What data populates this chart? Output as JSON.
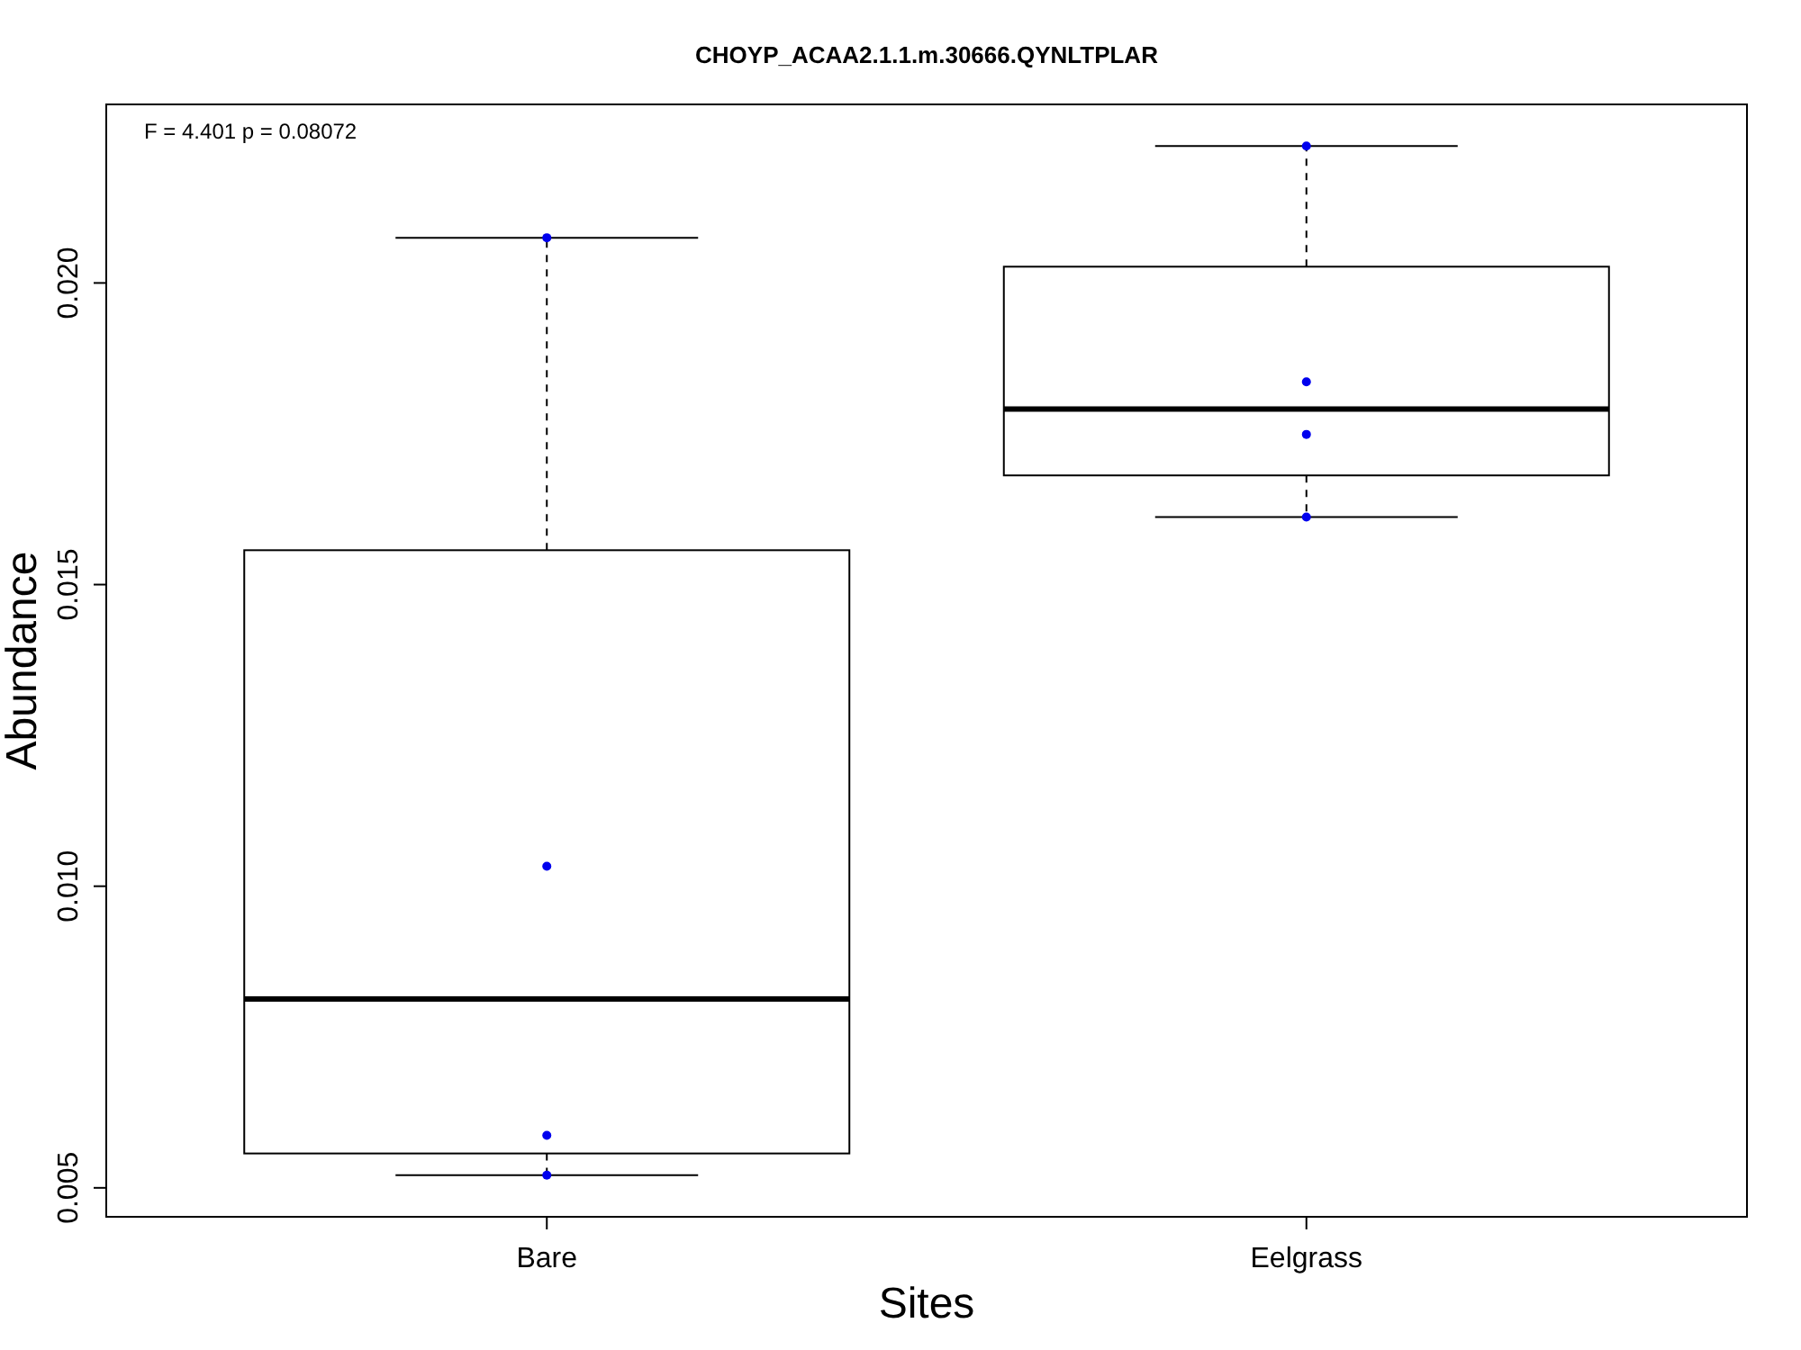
{
  "chart_data": {
    "type": "box",
    "title": "CHOYP_ACAA2.1.1.m.30666.QYNLTPLAR",
    "xlabel": "Sites",
    "ylabel": "Abundance",
    "annotations": [
      "F = 4.401 p = 0.08072"
    ],
    "categories": [
      "Bare",
      "Eelgrass"
    ],
    "ylim": [
      0.00452,
      0.02296
    ],
    "yticks": [
      {
        "value": 0.005,
        "label": "0.005"
      },
      {
        "value": 0.01,
        "label": "0.010"
      },
      {
        "value": 0.015,
        "label": "0.015"
      },
      {
        "value": 0.02,
        "label": "0.020"
      }
    ],
    "grid": false,
    "boxes": [
      {
        "low": 0.00521,
        "q1": 0.00557,
        "median": 0.00813,
        "q3": 0.01557,
        "high": 0.02075
      },
      {
        "low": 0.01612,
        "q1": 0.01681,
        "median": 0.01791,
        "q3": 0.02027,
        "high": 0.02227
      }
    ],
    "series": [
      {
        "type": "scatter",
        "color": "#0000ee",
        "marker": "circle",
        "x": [
          "Bare",
          "Bare",
          "Bare",
          "Bare",
          "Eelgrass",
          "Eelgrass",
          "Eelgrass",
          "Eelgrass"
        ],
        "values": [
          0.02075,
          0.01033,
          0.00587,
          0.00521,
          0.02227,
          0.01836,
          0.01749,
          0.01612
        ]
      }
    ]
  }
}
